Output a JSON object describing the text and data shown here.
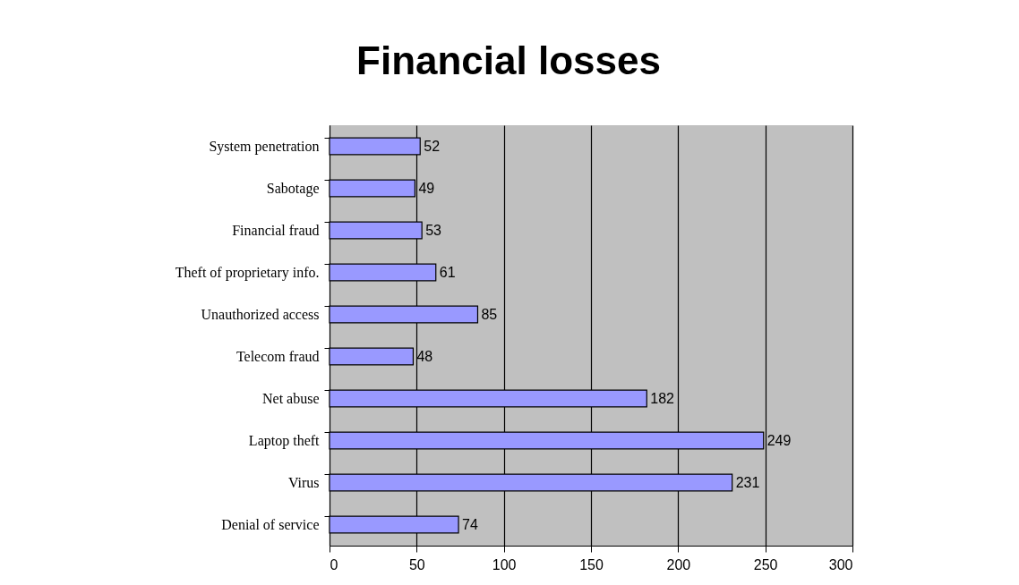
{
  "chart_data": {
    "type": "bar",
    "title": "Financial losses",
    "orientation": "horizontal",
    "categories": [
      "System penetration",
      "Sabotage",
      "Financial fraud",
      "Theft of proprietary info.",
      "Unauthorized access",
      "Telecom fraud",
      "Net abuse",
      "Laptop theft",
      "Virus",
      "Denial of service"
    ],
    "values": [
      52,
      49,
      53,
      61,
      85,
      48,
      182,
      249,
      231,
      74
    ],
    "color": "#9999ff",
    "xlim": [
      0,
      300
    ],
    "xticks": [
      0,
      50,
      100,
      150,
      200,
      250,
      300
    ],
    "grid": "x",
    "data_labels": true
  }
}
